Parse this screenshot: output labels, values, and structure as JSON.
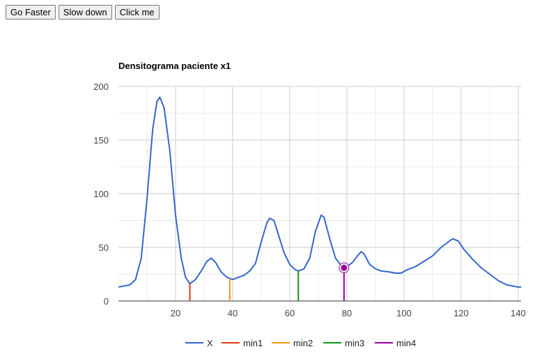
{
  "toolbar": {
    "faster_label": "Go Faster",
    "slower_label": "Slow down",
    "click_label": "Click me"
  },
  "chart_data": {
    "type": "line",
    "title": "Densitograma paciente x1",
    "xlabel": "",
    "ylabel": "",
    "xlim": [
      0,
      141
    ],
    "ylim": [
      0,
      200
    ],
    "x_ticks": [
      20,
      40,
      60,
      80,
      100,
      120,
      140
    ],
    "y_ticks": [
      0,
      50,
      100,
      150,
      200
    ],
    "grid": true,
    "legend_position": "bottom",
    "series": [
      {
        "name": "X",
        "color": "#3366cc",
        "points": [
          [
            0,
            13
          ],
          [
            2,
            14
          ],
          [
            4,
            15
          ],
          [
            6,
            20
          ],
          [
            8,
            40
          ],
          [
            10,
            95
          ],
          [
            12,
            160
          ],
          [
            13.5,
            186
          ],
          [
            14.5,
            190
          ],
          [
            16,
            180
          ],
          [
            18,
            140
          ],
          [
            20,
            80
          ],
          [
            22,
            40
          ],
          [
            23.5,
            22
          ],
          [
            25,
            16
          ],
          [
            27,
            20
          ],
          [
            29,
            28
          ],
          [
            31,
            37
          ],
          [
            32.5,
            40
          ],
          [
            34,
            36
          ],
          [
            36,
            27
          ],
          [
            38,
            22
          ],
          [
            40,
            20
          ],
          [
            42,
            22
          ],
          [
            44,
            24
          ],
          [
            46,
            28
          ],
          [
            48,
            35
          ],
          [
            50,
            55
          ],
          [
            52,
            73
          ],
          [
            53,
            77
          ],
          [
            54.5,
            75
          ],
          [
            56,
            62
          ],
          [
            58,
            45
          ],
          [
            60,
            34
          ],
          [
            62,
            29
          ],
          [
            63,
            28
          ],
          [
            65,
            30
          ],
          [
            67,
            40
          ],
          [
            69,
            65
          ],
          [
            71,
            80
          ],
          [
            72,
            78
          ],
          [
            74,
            58
          ],
          [
            76,
            40
          ],
          [
            78,
            33
          ],
          [
            80,
            32
          ],
          [
            82,
            36
          ],
          [
            84,
            43
          ],
          [
            85,
            46
          ],
          [
            86,
            44
          ],
          [
            88,
            34
          ],
          [
            90,
            30
          ],
          [
            92,
            28
          ],
          [
            95,
            27
          ],
          [
            97,
            26
          ],
          [
            99,
            26
          ],
          [
            101,
            29
          ],
          [
            104,
            32
          ],
          [
            107,
            37
          ],
          [
            110,
            42
          ],
          [
            113,
            50
          ],
          [
            116,
            56
          ],
          [
            117,
            58
          ],
          [
            119,
            56
          ],
          [
            121,
            48
          ],
          [
            124,
            39
          ],
          [
            127,
            31
          ],
          [
            130,
            25
          ],
          [
            133,
            19
          ],
          [
            136,
            15
          ],
          [
            138,
            14
          ],
          [
            140,
            13
          ],
          [
            141,
            13
          ]
        ]
      },
      {
        "name": "min1",
        "color": "#dc3912",
        "points": [
          [
            25,
            0
          ],
          [
            25,
            16
          ]
        ]
      },
      {
        "name": "min2",
        "color": "#ff9900",
        "points": [
          [
            39,
            0
          ],
          [
            39,
            21
          ]
        ]
      },
      {
        "name": "min3",
        "color": "#109618",
        "points": [
          [
            63,
            0
          ],
          [
            63,
            28
          ]
        ]
      },
      {
        "name": "min4",
        "color": "#990099",
        "points": [
          [
            79,
            0
          ],
          [
            79,
            31
          ]
        ],
        "marker": true
      }
    ]
  }
}
